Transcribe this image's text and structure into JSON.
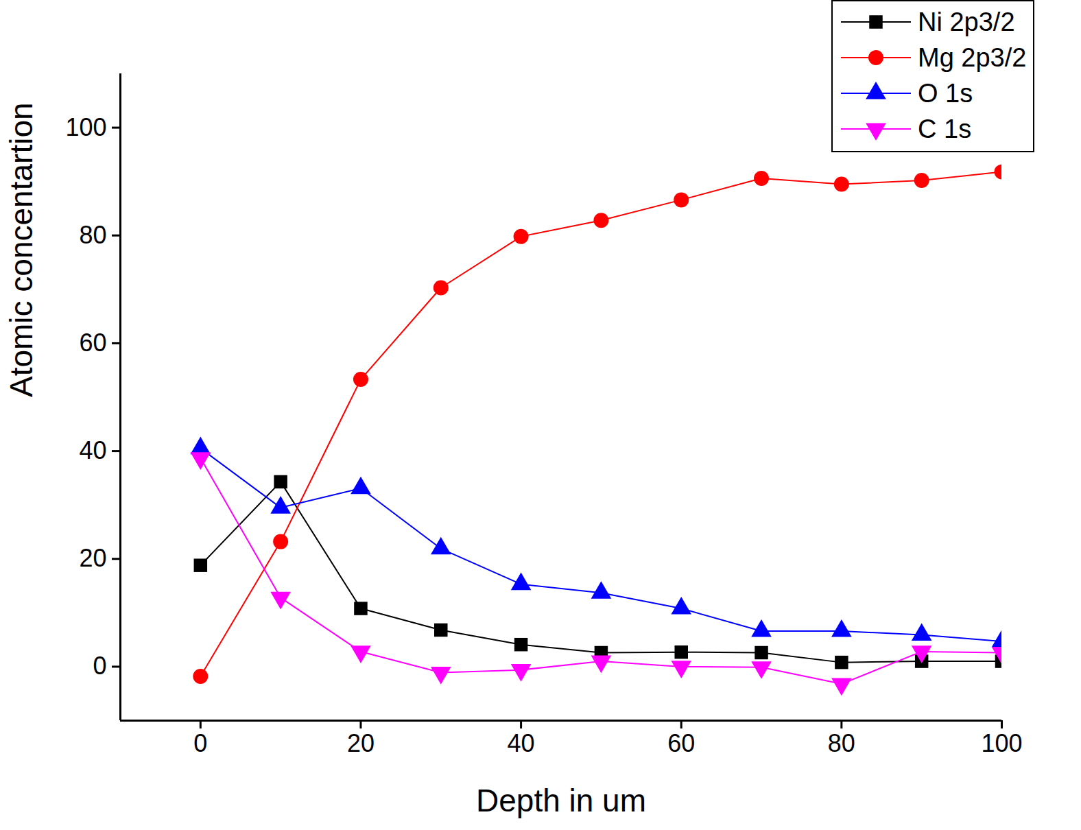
{
  "chart_data": {
    "type": "line",
    "x_label": "Depth in um",
    "y_label": "Atomic concentartion",
    "x": [
      0,
      10,
      20,
      30,
      40,
      50,
      60,
      70,
      80,
      90,
      100
    ],
    "xlim": [
      -10,
      100
    ],
    "xticks": [
      0,
      20,
      40,
      60,
      80,
      100
    ],
    "ylim": [
      -10,
      110
    ],
    "yticks": [
      0,
      20,
      40,
      60,
      80,
      100
    ],
    "grid": false,
    "legend": "upper right",
    "series": [
      {
        "name": "Ni 2p3/2",
        "color": "#000000",
        "marker": "square",
        "line_style": "solid",
        "values": [
          18.8,
          34.3,
          10.8,
          6.8,
          4.1,
          2.6,
          2.7,
          2.6,
          0.8,
          1.0,
          1.0
        ]
      },
      {
        "name": "Mg 2p3/2",
        "color": "#ff0000",
        "marker": "circle",
        "line_style": "solid",
        "values": [
          -1.8,
          23.2,
          53.3,
          70.3,
          79.8,
          82.8,
          86.6,
          90.6,
          89.5,
          90.2,
          91.8
        ]
      },
      {
        "name": "O 1s",
        "color": "#0000ff",
        "marker": "triangle",
        "line_style": "solid",
        "values": [
          40.5,
          29.5,
          33.1,
          21.9,
          15.3,
          13.7,
          10.8,
          6.6,
          6.6,
          5.9,
          4.7
        ]
      },
      {
        "name": "C 1s",
        "color": "#ff00ff",
        "marker": "triangle-down",
        "line_style": "solid",
        "values": [
          38.7,
          12.8,
          2.8,
          -1.1,
          -0.6,
          1.0,
          0.0,
          -0.1,
          -3.2,
          2.8,
          2.6
        ]
      }
    ]
  }
}
